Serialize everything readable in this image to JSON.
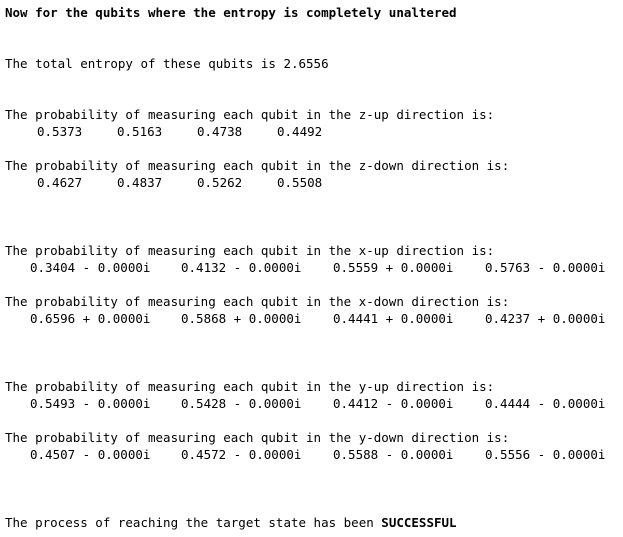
{
  "heading": "Now for the qubits where the entropy is completely unaltered",
  "entropy_line": "The total entropy of these qubits is 2.6556",
  "blocks": {
    "z_up": {
      "label": "The probability of measuring each qubit in the z-up direction is:",
      "values": [
        "0.5373",
        "0.5163",
        "0.4738",
        "0.4492"
      ]
    },
    "z_down": {
      "label": "The probability of measuring each qubit in the z-down direction is:",
      "values": [
        "0.4627",
        "0.4837",
        "0.5262",
        "0.5508"
      ]
    },
    "x_up": {
      "label": "The probability of measuring each qubit in the x-up direction is:",
      "values": [
        "0.3404 - 0.0000i",
        "0.4132 - 0.0000i",
        "0.5559 + 0.0000i",
        "0.5763 - 0.0000i"
      ]
    },
    "x_down": {
      "label": "The probability of measuring each qubit in the x-down direction is:",
      "values": [
        "0.6596 + 0.0000i",
        "0.5868 + 0.0000i",
        "0.4441 + 0.0000i",
        "0.4237 + 0.0000i"
      ]
    },
    "y_up": {
      "label": "The probability of measuring each qubit in the y-up direction is:",
      "values": [
        "0.5493 - 0.0000i",
        "0.5428 - 0.0000i",
        "0.4412 - 0.0000i",
        "0.4444 - 0.0000i"
      ]
    },
    "y_down": {
      "label": "The probability of measuring each qubit in the y-down direction is:",
      "values": [
        "0.4507 - 0.0000i",
        "0.4572 - 0.0000i",
        "0.5588 - 0.0000i",
        "0.5556 - 0.0000i"
      ]
    }
  },
  "result": {
    "prefix": "The process of reaching the target state has been ",
    "status": "SUCCESSFUL"
  }
}
